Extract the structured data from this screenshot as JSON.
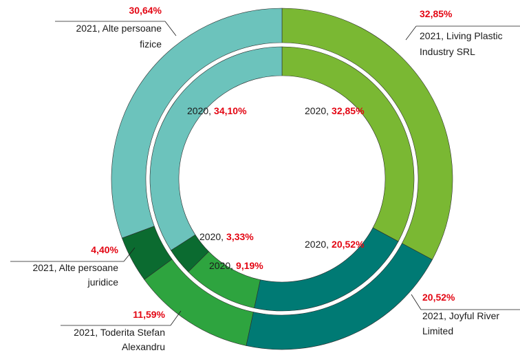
{
  "chart_data": {
    "type": "donut",
    "categories": [
      "Living Plastic Industry SRL",
      "Joyful River Limited",
      "Toderita Stefan Alexandru",
      "Alte persoane juridice",
      "Alte persoane fizice"
    ],
    "colors": [
      "#7ab833",
      "#007a74",
      "#2ea43f",
      "#0b6b30",
      "#6cc3bc"
    ],
    "series": [
      {
        "values": [
          32.85,
          20.52,
          11.59,
          4.4,
          30.64
        ],
        "value_labels": [
          "32,85%",
          "20,52%",
          "11,59%",
          "4,40%",
          "30,64%"
        ],
        "labels": [
          [
            "2021, Living Plastic",
            "Industry SRL"
          ],
          [
            "2021, Joyful River",
            "Limited"
          ],
          [
            "2021, Toderita Stefan",
            "Alexandru"
          ],
          [
            "2021, Alte persoane",
            "juridice"
          ],
          [
            "2021, Alte persoane",
            "fizice"
          ]
        ]
      },
      {
        "values": [
          32.85,
          20.52,
          9.19,
          3.33,
          34.1
        ],
        "value_labels": [
          "32,85%",
          "20,52%",
          "9,19%",
          "3,33%",
          "34,10%"
        ],
        "labels": [
          "2020,",
          "2020,",
          "2020,",
          "2020,",
          "2020,"
        ]
      }
    ]
  }
}
